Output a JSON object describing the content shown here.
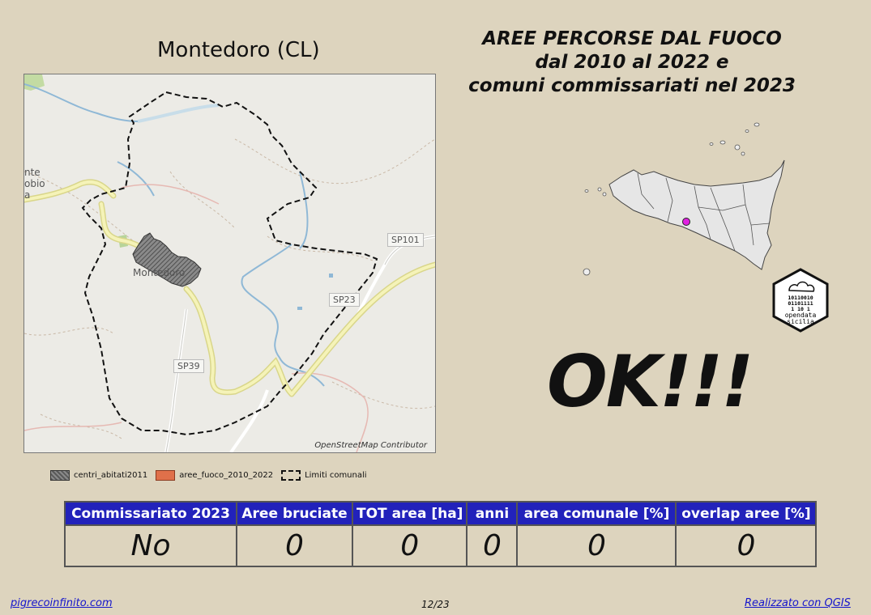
{
  "map": {
    "title": "Montedoro (CL)",
    "credit": "OpenStreetMap Contributor",
    "place_label": "Montedoro",
    "partial_labels": [
      "nte",
      "obio",
      "a"
    ],
    "roads": [
      "SP101",
      "SP23",
      "SP39"
    ]
  },
  "legend": {
    "items": [
      {
        "label": "centri_abitati2011",
        "symbol": "hatched-gray-fill"
      },
      {
        "label": "aree_fuoco_2010_2022",
        "symbol": "orange-fill",
        "color": "#e0704a"
      },
      {
        "label": "Limiti comunali",
        "symbol": "dashed-outline"
      }
    ]
  },
  "heading": {
    "line1": "AREE PERCORSE DAL FUOCO",
    "line2": "dal 2010 al 2022 e",
    "line3": "comuni commissariati nel 2023"
  },
  "inset": {
    "icon": "sicily-locator-map",
    "marker_color": "#e020e0"
  },
  "logo": {
    "icon": "opendata-sicilia-logo",
    "bits": [
      "10110010",
      "01101111",
      "1  10 1"
    ],
    "line1": "opendata",
    "line2": "sicilia"
  },
  "status": "OK!!!",
  "table": {
    "headers": [
      "Commissariato 2023",
      "Aree bruciate",
      "TOT area [ha]",
      "anni",
      "area comunale [%]",
      "overlap aree [%]"
    ],
    "values": [
      "No",
      "0",
      "0",
      "0",
      "0",
      "0"
    ]
  },
  "footer": {
    "left": "pigrecoinfinito.com",
    "center": "12/23",
    "right": "Realizzato con QGIS"
  },
  "colors": {
    "background": "#ddd4be",
    "table_header": "#2222bb",
    "link": "#1515cc"
  }
}
